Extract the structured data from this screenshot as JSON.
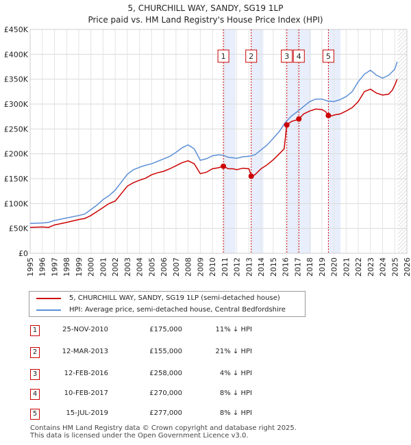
{
  "chart_data": {
    "type": "line",
    "title": "5, CHURCHILL WAY, SANDY, SG19 1LP",
    "subtitle": "Price paid vs. HM Land Registry's House Price Index (HPI)",
    "xlim": [
      1995,
      2026
    ],
    "ylim": [
      0,
      450000
    ],
    "x_ticks": [
      "1995",
      "1996",
      "1997",
      "1998",
      "1999",
      "2000",
      "2001",
      "2002",
      "2003",
      "2004",
      "2005",
      "2006",
      "2007",
      "2008",
      "2009",
      "2010",
      "2011",
      "2012",
      "2013",
      "2014",
      "2015",
      "2016",
      "2017",
      "2018",
      "2019",
      "2020",
      "2021",
      "2022",
      "2023",
      "2024",
      "2025",
      "2026"
    ],
    "y_ticks": [
      {
        "value": 0,
        "label": "£0"
      },
      {
        "value": 50000,
        "label": "£50K"
      },
      {
        "value": 100000,
        "label": "£100K"
      },
      {
        "value": 150000,
        "label": "£150K"
      },
      {
        "value": 200000,
        "label": "£200K"
      },
      {
        "value": 250000,
        "label": "£250K"
      },
      {
        "value": 300000,
        "label": "£300K"
      },
      {
        "value": 350000,
        "label": "£350K"
      },
      {
        "value": 400000,
        "label": "£400K"
      },
      {
        "value": 450000,
        "label": "£450K"
      }
    ],
    "grid": true,
    "shaded_future_after": 2025.25,
    "series": [
      {
        "name": "5, CHURCHILL WAY, SANDY, SG19 1LP (semi-detached house)",
        "color": "#cc0000",
        "points": [
          [
            1995.0,
            52000
          ],
          [
            1996.0,
            53000
          ],
          [
            1996.5,
            52000
          ],
          [
            1997.0,
            57000
          ],
          [
            1998.0,
            62000
          ],
          [
            1999.0,
            68000
          ],
          [
            1999.5,
            70000
          ],
          [
            2000.0,
            76000
          ],
          [
            2000.5,
            84000
          ],
          [
            2001.0,
            92000
          ],
          [
            2001.5,
            100000
          ],
          [
            2002.0,
            105000
          ],
          [
            2002.5,
            120000
          ],
          [
            2003.0,
            135000
          ],
          [
            2003.5,
            142000
          ],
          [
            2004.0,
            147000
          ],
          [
            2004.5,
            151000
          ],
          [
            2005.0,
            158000
          ],
          [
            2005.5,
            162000
          ],
          [
            2006.0,
            165000
          ],
          [
            2006.5,
            170000
          ],
          [
            2007.0,
            176000
          ],
          [
            2007.5,
            182000
          ],
          [
            2008.0,
            186000
          ],
          [
            2008.5,
            180000
          ],
          [
            2009.0,
            160000
          ],
          [
            2009.5,
            163000
          ],
          [
            2010.0,
            170000
          ],
          [
            2010.5,
            172000
          ],
          [
            2010.9,
            175000
          ],
          [
            2011.3,
            170000
          ],
          [
            2011.7,
            170000
          ],
          [
            2012.0,
            168000
          ],
          [
            2012.5,
            171000
          ],
          [
            2013.0,
            170000
          ],
          [
            2013.2,
            155000
          ],
          [
            2013.5,
            158000
          ],
          [
            2014.0,
            170000
          ],
          [
            2014.5,
            178000
          ],
          [
            2015.0,
            188000
          ],
          [
            2015.5,
            200000
          ],
          [
            2015.9,
            210000
          ],
          [
            2016.12,
            258000
          ],
          [
            2016.5,
            265000
          ],
          [
            2016.9,
            268000
          ],
          [
            2017.11,
            270000
          ],
          [
            2017.5,
            280000
          ],
          [
            2018.0,
            286000
          ],
          [
            2018.5,
            290000
          ],
          [
            2019.0,
            289000
          ],
          [
            2019.3,
            285000
          ],
          [
            2019.54,
            277000
          ],
          [
            2019.8,
            276000
          ],
          [
            2020.0,
            278000
          ],
          [
            2020.5,
            280000
          ],
          [
            2021.0,
            286000
          ],
          [
            2021.5,
            293000
          ],
          [
            2022.0,
            305000
          ],
          [
            2022.5,
            325000
          ],
          [
            2023.0,
            330000
          ],
          [
            2023.5,
            322000
          ],
          [
            2024.0,
            318000
          ],
          [
            2024.5,
            320000
          ],
          [
            2024.8,
            328000
          ],
          [
            2025.0,
            338000
          ],
          [
            2025.2,
            350000
          ]
        ]
      },
      {
        "name": "HPI: Average price, semi-detached house, Central Bedfordshire",
        "color": "#5b8fd6",
        "points": [
          [
            1995.0,
            60000
          ],
          [
            1996.0,
            61000
          ],
          [
            1996.5,
            62000
          ],
          [
            1997.0,
            66000
          ],
          [
            1998.0,
            71000
          ],
          [
            1999.0,
            76000
          ],
          [
            1999.5,
            79000
          ],
          [
            2000.0,
            88000
          ],
          [
            2000.5,
            97000
          ],
          [
            2001.0,
            108000
          ],
          [
            2001.5,
            116000
          ],
          [
            2002.0,
            127000
          ],
          [
            2002.5,
            143000
          ],
          [
            2003.0,
            159000
          ],
          [
            2003.5,
            168000
          ],
          [
            2004.0,
            173000
          ],
          [
            2004.5,
            177000
          ],
          [
            2005.0,
            180000
          ],
          [
            2005.5,
            185000
          ],
          [
            2006.0,
            190000
          ],
          [
            2006.5,
            195000
          ],
          [
            2007.0,
            203000
          ],
          [
            2007.5,
            212000
          ],
          [
            2008.0,
            218000
          ],
          [
            2008.5,
            210000
          ],
          [
            2009.0,
            187000
          ],
          [
            2009.5,
            190000
          ],
          [
            2010.0,
            196000
          ],
          [
            2010.5,
            198000
          ],
          [
            2010.9,
            197000
          ],
          [
            2011.3,
            193000
          ],
          [
            2011.7,
            192000
          ],
          [
            2012.0,
            191000
          ],
          [
            2012.5,
            194000
          ],
          [
            2013.0,
            195000
          ],
          [
            2013.5,
            198000
          ],
          [
            2014.0,
            208000
          ],
          [
            2014.5,
            218000
          ],
          [
            2015.0,
            231000
          ],
          [
            2015.5,
            245000
          ],
          [
            2016.0,
            263000
          ],
          [
            2016.5,
            276000
          ],
          [
            2017.0,
            285000
          ],
          [
            2017.5,
            295000
          ],
          [
            2018.0,
            305000
          ],
          [
            2018.5,
            310000
          ],
          [
            2019.0,
            310000
          ],
          [
            2019.5,
            306000
          ],
          [
            2020.0,
            305000
          ],
          [
            2020.5,
            309000
          ],
          [
            2021.0,
            315000
          ],
          [
            2021.5,
            325000
          ],
          [
            2022.0,
            345000
          ],
          [
            2022.5,
            360000
          ],
          [
            2023.0,
            368000
          ],
          [
            2023.5,
            358000
          ],
          [
            2024.0,
            352000
          ],
          [
            2024.5,
            358000
          ],
          [
            2025.0,
            370000
          ],
          [
            2025.2,
            385000
          ]
        ]
      }
    ],
    "sales": [
      {
        "id": "1",
        "x": 2010.9,
        "y": 175000
      },
      {
        "id": "2",
        "x": 2013.19,
        "y": 155000
      },
      {
        "id": "3",
        "x": 2016.12,
        "y": 258000
      },
      {
        "id": "4",
        "x": 2017.11,
        "y": 270000
      },
      {
        "id": "5",
        "x": 2019.54,
        "y": 277000
      }
    ]
  },
  "legend": {
    "property_label": "5, CHURCHILL WAY, SANDY, SG19 1LP (semi-detached house)",
    "hpi_label": "HPI: Average price, semi-detached house, Central Bedfordshire"
  },
  "transactions": [
    {
      "id": "1",
      "date": "25-NOV-2010",
      "price": "£175,000",
      "hpi": "11% ↓ HPI"
    },
    {
      "id": "2",
      "date": "12-MAR-2013",
      "price": "£155,000",
      "hpi": "21% ↓ HPI"
    },
    {
      "id": "3",
      "date": "12-FEB-2016",
      "price": "£258,000",
      "hpi": "4% ↓ HPI"
    },
    {
      "id": "4",
      "date": "10-FEB-2017",
      "price": "£270,000",
      "hpi": "8% ↓ HPI"
    },
    {
      "id": "5",
      "date": "15-JUL-2019",
      "price": "£277,000",
      "hpi": "8% ↓ HPI"
    }
  ],
  "footer": {
    "line1": "Contains HM Land Registry data © Crown copyright and database right 2025.",
    "line2": "This data is licensed under the Open Government Licence v3.0."
  },
  "colors": {
    "property": "#cc0000",
    "hpi": "#5b8fd6",
    "band": "#e8eefb",
    "marker_box": "#cc0000"
  }
}
